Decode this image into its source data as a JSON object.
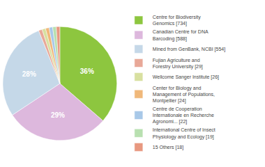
{
  "chart_data": {
    "type": "pie",
    "categories": [
      "Centre for Biodiversity\nGenomics [734]",
      "Canadian Centre for DNA\nBarcoding [588]",
      "Mined from GenBank, NCBI [554]",
      "Fujian Agriculture and\nForestry University [29]",
      "Wellcome Sanger Institute [26]",
      "Center for Biology and\nManagement of Populations,\nMontpellier [24]",
      "Centre de Cooperation\nInternationale en Recherche\nAgronomi... [22]",
      "International Centre of Insect\nPhysiology and Ecology [19]",
      "15 Others [18]"
    ],
    "values": [
      36,
      29,
      28,
      1,
      1,
      1,
      1,
      1,
      1
    ],
    "value_labels": [
      "36%",
      "29%",
      "28%",
      null,
      null,
      null,
      null,
      null,
      null
    ],
    "data_labels": true,
    "colors": [
      "#8DC63F",
      "#DDB8DD",
      "#C5D8E8",
      "#E8A898",
      "#D8E0A0",
      "#F0B87A",
      "#A8C8E8",
      "#B8E0B0",
      "#E89880"
    ],
    "legend": "right"
  }
}
